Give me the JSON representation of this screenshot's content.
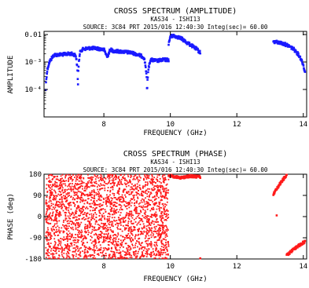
{
  "chart_data": [
    {
      "type": "scatter",
      "title": "CROSS SPECTRUM (AMPLITUDE)",
      "baseline": "KAS34 - ISHI13",
      "source_line": "SOURCE: 3C84   PRT 2015/016 12:40:30   Integ(sec)=   60.00",
      "xlabel": "FREQUENCY (GHz)",
      "ylabel": "AMPLITUDE",
      "xlim": [
        6.2,
        14.1
      ],
      "ylim": [
        1e-05,
        0.013
      ],
      "yscale": "log",
      "xticks": [
        8,
        10,
        12,
        14
      ],
      "xtick_labels": [
        "8",
        "10",
        "12",
        "14"
      ],
      "yticks": [
        0.0001,
        0.001,
        0.01
      ],
      "ytick_labels": [
        "10⁻⁴",
        "10⁻³",
        "0.01"
      ],
      "marker": "star",
      "series": [
        {
          "color": "#1a1aff",
          "segments": [
            {
              "x": [
                6.25,
                6.35,
                6.5,
                6.8,
                7.0,
                7.15,
                7.22,
                7.3,
                7.4,
                7.6,
                7.8,
                8.0,
                8.1,
                8.2,
                8.3,
                8.5,
                8.8,
                9.0,
                9.2,
                9.3,
                9.4,
                9.6,
                9.8,
                9.95
              ],
              "y": [
                0.0001,
                0.0009,
                0.0018,
                0.0019,
                0.002,
                0.0018,
                8e-05,
                0.0026,
                0.003,
                0.0032,
                0.0031,
                0.0028,
                0.0015,
                0.0028,
                0.0025,
                0.0024,
                0.0022,
                0.0019,
                0.0015,
                5e-05,
                0.0012,
                0.0011,
                0.0012,
                0.0012
              ]
            },
            {
              "x": [
                9.95,
                10.0,
                10.1,
                10.3,
                10.5,
                10.7,
                10.9
              ],
              "y": [
                0.004,
                0.0085,
                0.009,
                0.0075,
                0.005,
                0.0035,
                0.0022
              ]
            },
            {
              "x": [
                13.1,
                13.3,
                13.5,
                13.7,
                13.9,
                14.05
              ],
              "y": [
                0.0055,
                0.005,
                0.0042,
                0.003,
                0.0015,
                0.0004
              ]
            }
          ]
        }
      ]
    },
    {
      "type": "scatter",
      "title": "CROSS SPECTRUM (PHASE)",
      "baseline": "KAS34 - ISHI13",
      "source_line": "SOURCE: 3C84   PRT 2015/016 12:40:30   Integ(sec)=   60.00",
      "xlabel": "FREQUENCY (GHz)",
      "ylabel": "PHASE (deg)",
      "xlim": [
        6.2,
        14.1
      ],
      "ylim": [
        -180,
        180
      ],
      "xticks": [
        8,
        10,
        12,
        14
      ],
      "xtick_labels": [
        "8",
        "10",
        "12",
        "14"
      ],
      "yticks": [
        -180,
        -90,
        0,
        90,
        180
      ],
      "ytick_labels": [
        "-180",
        "-90",
        "0",
        "90",
        "180"
      ],
      "marker": "star",
      "series": [
        {
          "color": "#ff1a1a",
          "noise_band": {
            "x": [
              6.25,
              9.95
            ],
            "y": [
              -180,
              180
            ]
          },
          "segments": [
            {
              "x": [
                9.95,
                10.3,
                10.6,
                10.9
              ],
              "y": [
                175,
                165,
                172,
                168
              ]
            },
            {
              "x": [
                13.1,
                13.3,
                13.5
              ],
              "y": [
                95,
                140,
                178
              ]
            },
            {
              "x": [
                13.5,
                13.7,
                13.9,
                14.05
              ],
              "y": [
                -165,
                -140,
                -120,
                -105
              ]
            }
          ],
          "outliers": [
            {
              "x": 10.9,
              "y": -178
            },
            {
              "x": 13.2,
              "y": 5
            }
          ]
        }
      ]
    }
  ]
}
